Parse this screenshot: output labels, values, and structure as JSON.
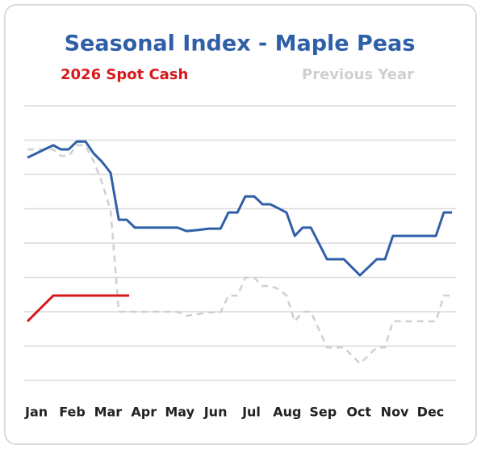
{
  "chart_data": {
    "type": "line",
    "title": "Seasonal Index - Maple Peas",
    "xlim": [
      0.66,
      12.71
    ],
    "xticks": [
      {
        "value": 1,
        "label": "Jan"
      },
      {
        "value": 2,
        "label": "Feb"
      },
      {
        "value": 3,
        "label": "Mar"
      },
      {
        "value": 4,
        "label": "Apr"
      },
      {
        "value": 5,
        "label": "May"
      },
      {
        "value": 6,
        "label": "Jun"
      },
      {
        "value": 7,
        "label": "Jul"
      },
      {
        "value": 8,
        "label": "Aug"
      },
      {
        "value": 9,
        "label": "Sep"
      },
      {
        "value": 10,
        "label": "Oct"
      },
      {
        "value": 11,
        "label": "Nov"
      },
      {
        "value": 12,
        "label": "Dec"
      }
    ],
    "ylim": [
      0,
      8
    ],
    "yticks": [
      0,
      1,
      2,
      3,
      4,
      5,
      6,
      7,
      8
    ],
    "grid": true,
    "series": [
      {
        "name": "Previous Year",
        "color": "#d0d0d0",
        "dashed": true,
        "x": [
          0.75,
          1.23,
          1.47,
          1.68,
          1.9,
          2.13,
          2.37,
          2.6,
          2.82,
          3.07,
          3.3,
          3.52,
          4.94,
          5.19,
          5.5,
          5.82,
          6.14,
          6.36,
          6.61,
          6.83,
          7.08,
          7.31,
          7.53,
          7.76,
          7.98,
          8.21,
          8.43,
          8.66,
          9.11,
          9.58,
          10.03,
          10.5,
          10.73,
          10.95,
          12.15,
          12.37,
          12.6
        ],
        "values": [
          6.73,
          6.73,
          6.73,
          6.54,
          6.54,
          6.85,
          6.85,
          6.38,
          5.79,
          4.96,
          2.0,
          2.0,
          2.0,
          1.88,
          1.93,
          1.98,
          1.98,
          2.47,
          2.47,
          2.99,
          2.99,
          2.75,
          2.75,
          2.66,
          2.47,
          1.72,
          2.0,
          2.0,
          0.96,
          0.96,
          0.49,
          0.96,
          0.96,
          1.72,
          1.72,
          2.47,
          2.47
        ]
      },
      {
        "name": "Seasonal Index",
        "color": "#2f5fa7",
        "dashed": false,
        "x": [
          0.75,
          1.47,
          1.68,
          1.9,
          2.13,
          2.37,
          2.6,
          2.82,
          3.07,
          3.3,
          3.52,
          3.75,
          4.94,
          5.19,
          5.5,
          5.82,
          6.14,
          6.36,
          6.61,
          6.83,
          7.08,
          7.31,
          7.53,
          7.76,
          7.98,
          8.21,
          8.43,
          8.66,
          9.11,
          9.58,
          10.03,
          10.5,
          10.73,
          10.95,
          12.15,
          12.37,
          12.6
        ],
        "values": [
          6.49,
          6.85,
          6.73,
          6.73,
          6.96,
          6.96,
          6.61,
          6.38,
          6.05,
          4.68,
          4.68,
          4.45,
          4.45,
          4.35,
          4.38,
          4.42,
          4.42,
          4.89,
          4.89,
          5.36,
          5.36,
          5.13,
          5.13,
          5.01,
          4.89,
          4.21,
          4.45,
          4.45,
          3.53,
          3.53,
          3.06,
          3.53,
          3.53,
          4.21,
          4.21,
          4.89,
          4.89
        ]
      },
      {
        "name": "2026 Spot Cash",
        "color": "#d7191c",
        "dashed": false,
        "x": [
          0.75,
          1.47,
          3.59
        ],
        "values": [
          1.72,
          2.47,
          2.47
        ]
      }
    ]
  }
}
